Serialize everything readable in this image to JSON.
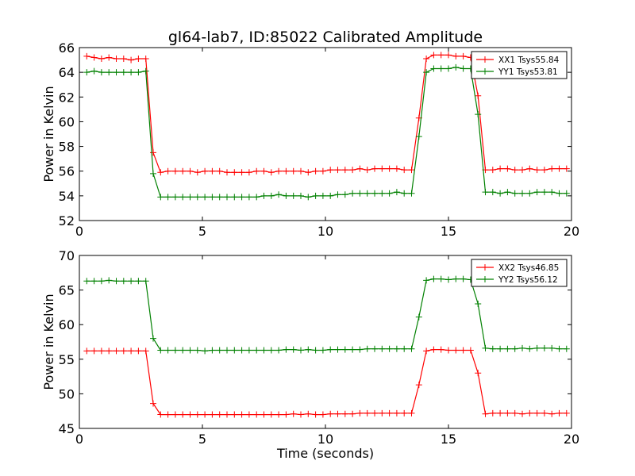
{
  "figure_title": "gl64-lab7, ID:85022 Calibrated Amplitude",
  "colors": {
    "red": "#ff0000",
    "green": "#008000",
    "axes": "#000000",
    "background": "#ffffff"
  },
  "chart_data": [
    {
      "type": "line",
      "title": "gl64-lab7, ID:85022 Calibrated Amplitude",
      "xlabel": "",
      "ylabel": "Power in Kelvin",
      "xlim": [
        0,
        20
      ],
      "ylim": [
        52,
        66
      ],
      "xticks": [
        "0",
        "5",
        "10",
        "15",
        "20"
      ],
      "yticks": [
        "52",
        "54",
        "56",
        "58",
        "60",
        "62",
        "64",
        "66"
      ],
      "grid": false,
      "legend_position": "top-right",
      "marker": "+",
      "x": [
        0.3,
        0.6,
        0.9,
        1.2,
        1.5,
        1.8,
        2.1,
        2.4,
        2.7,
        3.0,
        3.3,
        3.6,
        3.9,
        4.2,
        4.5,
        4.8,
        5.1,
        5.4,
        5.7,
        6.0,
        6.3,
        6.6,
        6.9,
        7.2,
        7.5,
        7.8,
        8.1,
        8.4,
        8.7,
        9.0,
        9.3,
        9.6,
        9.9,
        10.2,
        10.5,
        10.8,
        11.1,
        11.4,
        11.7,
        12.0,
        12.3,
        12.6,
        12.9,
        13.2,
        13.5,
        13.8,
        14.1,
        14.4,
        14.7,
        15.0,
        15.3,
        15.6,
        15.9,
        16.2,
        16.5,
        16.8,
        17.1,
        17.4,
        17.7,
        18.0,
        18.3,
        18.6,
        18.9,
        19.2,
        19.5,
        19.8
      ],
      "series": [
        {
          "name": "XX1 Tsys55.84",
          "color": "#ff0000",
          "values": [
            65.3,
            65.2,
            65.1,
            65.2,
            65.1,
            65.1,
            65.0,
            65.1,
            65.1,
            57.5,
            55.9,
            56.0,
            56.0,
            56.0,
            56.0,
            55.9,
            56.0,
            56.0,
            56.0,
            55.9,
            55.9,
            55.9,
            55.9,
            56.0,
            56.0,
            55.9,
            56.0,
            56.0,
            56.0,
            56.0,
            55.9,
            56.0,
            56.0,
            56.1,
            56.1,
            56.1,
            56.1,
            56.2,
            56.1,
            56.2,
            56.2,
            56.2,
            56.2,
            56.1,
            56.1,
            60.3,
            65.1,
            65.4,
            65.4,
            65.4,
            65.3,
            65.3,
            65.2,
            62.1,
            56.1,
            56.1,
            56.2,
            56.2,
            56.1,
            56.1,
            56.2,
            56.1,
            56.1,
            56.2,
            56.2,
            56.2
          ]
        },
        {
          "name": "YY1 Tsys53.81",
          "color": "#008000",
          "values": [
            64.0,
            64.1,
            64.0,
            64.0,
            64.0,
            64.0,
            64.0,
            64.0,
            64.1,
            55.8,
            53.9,
            53.9,
            53.9,
            53.9,
            53.9,
            53.9,
            53.9,
            53.9,
            53.9,
            53.9,
            53.9,
            53.9,
            53.9,
            53.9,
            54.0,
            54.0,
            54.1,
            54.0,
            54.0,
            54.0,
            53.9,
            54.0,
            54.0,
            54.0,
            54.1,
            54.1,
            54.2,
            54.2,
            54.2,
            54.2,
            54.2,
            54.2,
            54.3,
            54.2,
            54.2,
            58.8,
            64.0,
            64.3,
            64.3,
            64.3,
            64.4,
            64.3,
            64.3,
            60.6,
            54.3,
            54.3,
            54.2,
            54.3,
            54.2,
            54.2,
            54.2,
            54.3,
            54.3,
            54.3,
            54.2,
            54.2
          ]
        }
      ]
    },
    {
      "type": "line",
      "title": "",
      "xlabel": "Time (seconds)",
      "ylabel": "Power in Kelvin",
      "xlim": [
        0,
        20
      ],
      "ylim": [
        45,
        70
      ],
      "xticks": [
        "0",
        "5",
        "10",
        "15",
        "20"
      ],
      "yticks": [
        "45",
        "50",
        "55",
        "60",
        "65",
        "70"
      ],
      "grid": false,
      "legend_position": "top-right",
      "marker": "+",
      "x": [
        0.3,
        0.6,
        0.9,
        1.2,
        1.5,
        1.8,
        2.1,
        2.4,
        2.7,
        3.0,
        3.3,
        3.6,
        3.9,
        4.2,
        4.5,
        4.8,
        5.1,
        5.4,
        5.7,
        6.0,
        6.3,
        6.6,
        6.9,
        7.2,
        7.5,
        7.8,
        8.1,
        8.4,
        8.7,
        9.0,
        9.3,
        9.6,
        9.9,
        10.2,
        10.5,
        10.8,
        11.1,
        11.4,
        11.7,
        12.0,
        12.3,
        12.6,
        12.9,
        13.2,
        13.5,
        13.8,
        14.1,
        14.4,
        14.7,
        15.0,
        15.3,
        15.6,
        15.9,
        16.2,
        16.5,
        16.8,
        17.1,
        17.4,
        17.7,
        18.0,
        18.3,
        18.6,
        18.9,
        19.2,
        19.5,
        19.8
      ],
      "series": [
        {
          "name": "XX2 Tsys46.85",
          "color": "#ff0000",
          "values": [
            56.2,
            56.2,
            56.2,
            56.2,
            56.2,
            56.2,
            56.2,
            56.2,
            56.2,
            48.6,
            47.0,
            47.0,
            47.0,
            47.0,
            47.0,
            47.0,
            47.0,
            47.0,
            47.0,
            47.0,
            47.0,
            47.0,
            47.0,
            47.0,
            47.0,
            47.0,
            47.0,
            47.0,
            47.1,
            47.0,
            47.1,
            47.0,
            47.0,
            47.1,
            47.1,
            47.1,
            47.1,
            47.2,
            47.2,
            47.2,
            47.2,
            47.2,
            47.2,
            47.2,
            47.2,
            51.3,
            56.2,
            56.4,
            56.4,
            56.3,
            56.3,
            56.3,
            56.3,
            53.0,
            47.1,
            47.2,
            47.2,
            47.2,
            47.2,
            47.1,
            47.2,
            47.2,
            47.2,
            47.1,
            47.2,
            47.2
          ]
        },
        {
          "name": "YY2 Tsys56.12",
          "color": "#008000",
          "values": [
            66.3,
            66.3,
            66.3,
            66.4,
            66.3,
            66.3,
            66.3,
            66.3,
            66.3,
            58.0,
            56.3,
            56.3,
            56.3,
            56.3,
            56.3,
            56.3,
            56.2,
            56.3,
            56.3,
            56.3,
            56.3,
            56.3,
            56.3,
            56.3,
            56.3,
            56.3,
            56.3,
            56.4,
            56.4,
            56.3,
            56.4,
            56.3,
            56.3,
            56.4,
            56.4,
            56.4,
            56.4,
            56.4,
            56.5,
            56.5,
            56.5,
            56.5,
            56.5,
            56.5,
            56.5,
            61.1,
            66.4,
            66.6,
            66.6,
            66.5,
            66.6,
            66.6,
            66.5,
            63.0,
            56.6,
            56.5,
            56.5,
            56.5,
            56.5,
            56.6,
            56.5,
            56.6,
            56.6,
            56.6,
            56.5,
            56.5
          ]
        }
      ]
    }
  ]
}
